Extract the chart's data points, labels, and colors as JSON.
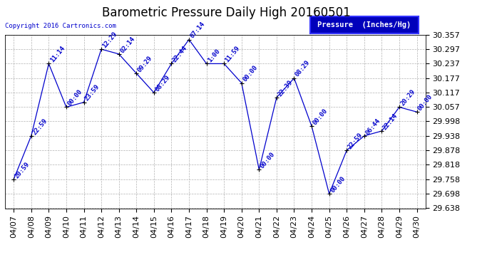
{
  "title": "Barometric Pressure Daily High 20160501",
  "copyright": "Copyright 2016 Cartronics.com",
  "legend_label": "Pressure  (Inches/Hg)",
  "dates": [
    "04/07",
    "04/08",
    "04/09",
    "04/10",
    "04/11",
    "04/12",
    "04/13",
    "04/14",
    "04/15",
    "04/16",
    "04/17",
    "04/18",
    "04/19",
    "04/20",
    "04/21",
    "04/22",
    "04/23",
    "04/24",
    "04/25",
    "04/26",
    "04/27",
    "04/28",
    "04/29",
    "04/30"
  ],
  "values": [
    29.758,
    29.938,
    30.237,
    30.057,
    30.077,
    30.297,
    30.277,
    30.197,
    30.117,
    30.237,
    30.337,
    30.237,
    30.237,
    30.157,
    29.798,
    30.097,
    30.177,
    29.978,
    29.698,
    29.878,
    29.938,
    29.958,
    30.057,
    30.037
  ],
  "times": [
    "20:59",
    "22:59",
    "11:14",
    "00:00",
    "23:59",
    "12:29",
    "02:14",
    "09:29",
    "08:29",
    "22:44",
    "07:14",
    "1:00",
    "11:59",
    "00:00",
    "00:00",
    "22:39",
    "08:29",
    "00:00",
    "00:00",
    "22:59",
    "06:44",
    "22:14",
    "20:29",
    "00:00"
  ],
  "ylim": [
    29.638,
    30.357
  ],
  "yticks": [
    29.638,
    29.698,
    29.758,
    29.818,
    29.878,
    29.938,
    29.998,
    30.057,
    30.117,
    30.177,
    30.237,
    30.297,
    30.357
  ],
  "line_color": "#0000cc",
  "marker_color": "#000000",
  "bg_color": "#ffffff",
  "grid_color": "#aaaaaa",
  "title_fontsize": 12,
  "tick_fontsize": 8,
  "annotation_fontsize": 6.5,
  "legend_bg": "#0000bb",
  "legend_fg": "#ffffff",
  "copyright_color": "#0000cc"
}
